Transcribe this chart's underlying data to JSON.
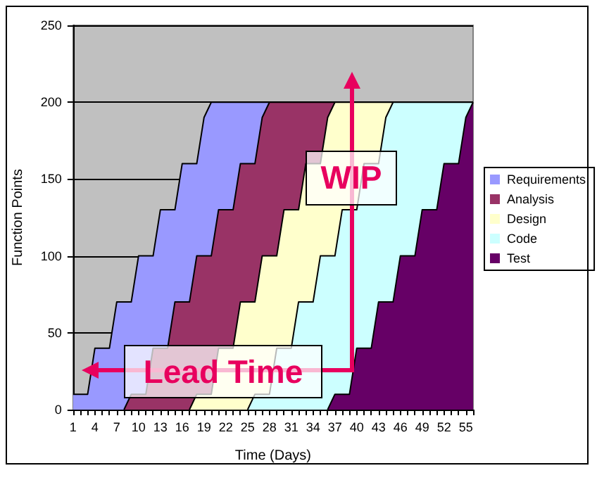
{
  "chart_data": {
    "type": "area",
    "stacked": true,
    "xlabel": "Time (Days)",
    "ylabel": "Function Points",
    "categories": [
      "1",
      null,
      null,
      "4",
      null,
      null,
      "7",
      null,
      null,
      "10",
      null,
      null,
      "13",
      null,
      null,
      "16",
      null,
      null,
      "19",
      null,
      null,
      "22",
      null,
      null,
      "25",
      null,
      null,
      "28",
      null,
      null,
      "31",
      null,
      null,
      "34",
      null,
      null,
      "37",
      null,
      null,
      "40",
      null,
      null,
      "43",
      null,
      null,
      "46",
      null,
      null,
      "49",
      null,
      null,
      "52",
      null,
      null,
      "55",
      null
    ],
    "series": [
      {
        "name": "Test",
        "color": "#660066",
        "values": [
          null,
          null,
          null,
          null,
          null,
          null,
          null,
          null,
          null,
          null,
          null,
          null,
          null,
          null,
          null,
          null,
          null,
          null,
          null,
          null,
          null,
          null,
          null,
          null,
          null,
          null,
          null,
          null,
          null,
          null,
          null,
          null,
          null,
          null,
          null,
          0,
          10,
          10,
          10,
          40,
          40,
          40,
          70,
          70,
          70,
          100,
          100,
          100,
          130,
          130,
          130,
          160,
          160,
          160,
          190,
          200
        ]
      },
      {
        "name": "Code",
        "color": "#ccffff",
        "values": [
          null,
          null,
          null,
          null,
          null,
          null,
          null,
          null,
          null,
          null,
          null,
          null,
          null,
          null,
          null,
          null,
          null,
          null,
          null,
          null,
          null,
          null,
          null,
          null,
          0,
          10,
          10,
          10,
          40,
          40,
          40,
          70,
          70,
          70,
          100,
          100,
          90,
          120,
          120,
          90,
          120,
          120,
          90,
          120,
          130,
          100,
          100,
          100,
          70,
          70,
          70,
          40,
          40,
          40,
          10,
          0
        ]
      },
      {
        "name": "Design",
        "color": "#ffffcc",
        "values": [
          null,
          null,
          null,
          null,
          null,
          null,
          null,
          null,
          null,
          null,
          null,
          null,
          null,
          null,
          null,
          null,
          0,
          10,
          10,
          10,
          40,
          40,
          40,
          70,
          70,
          60,
          90,
          90,
          60,
          90,
          90,
          60,
          90,
          90,
          60,
          90,
          100,
          70,
          70,
          70,
          40,
          40,
          40,
          10,
          0,
          null,
          null,
          null,
          null,
          null,
          null,
          null,
          null,
          null,
          null,
          null
        ]
      },
      {
        "name": "Analysis",
        "color": "#993366",
        "values": [
          null,
          null,
          null,
          null,
          null,
          null,
          null,
          0,
          10,
          10,
          10,
          40,
          40,
          40,
          70,
          70,
          70,
          90,
          90,
          90,
          90,
          90,
          90,
          90,
          90,
          90,
          90,
          100,
          100,
          70,
          70,
          70,
          40,
          40,
          40,
          10,
          0,
          null,
          null,
          null,
          null,
          null,
          null,
          null,
          null,
          null,
          null,
          null,
          null,
          null,
          null,
          null,
          null,
          null,
          null,
          null
        ]
      },
      {
        "name": "Requirements",
        "color": "#9999ff",
        "values": [
          10,
          10,
          10,
          40,
          40,
          40,
          70,
          70,
          60,
          90,
          90,
          60,
          90,
          90,
          60,
          90,
          90,
          60,
          90,
          100,
          70,
          70,
          70,
          40,
          40,
          40,
          10,
          0,
          null,
          null,
          null,
          null,
          null,
          null,
          null,
          null,
          null,
          null,
          null,
          null,
          null,
          null,
          null,
          null,
          null,
          null,
          null,
          null,
          null,
          null,
          null,
          null,
          null,
          null,
          null,
          null
        ]
      }
    ],
    "ylim": [
      0,
      250
    ],
    "yticks": [
      0,
      50,
      100,
      150,
      200,
      250
    ],
    "grid": "y",
    "legend": "right",
    "marker": "none",
    "annotations": [
      "Lead Time",
      "WIP"
    ]
  }
}
